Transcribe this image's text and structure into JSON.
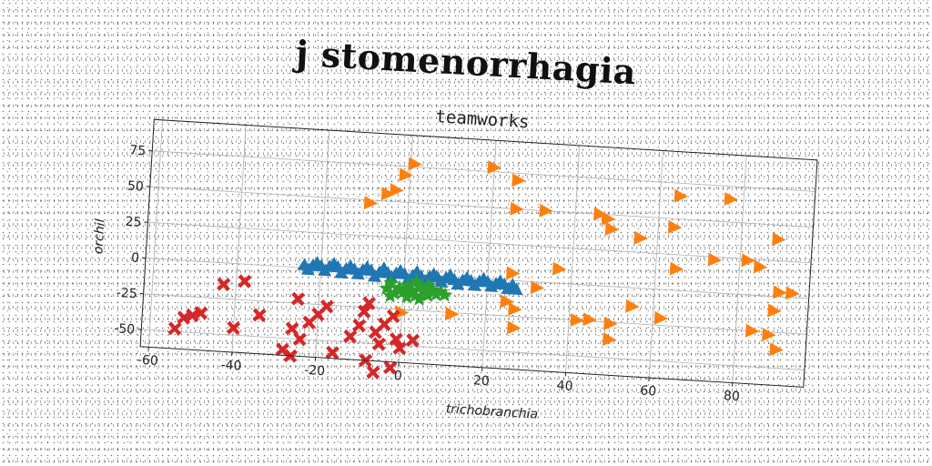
{
  "title": "j stomenorrhagia",
  "chart_data": {
    "type": "scatter",
    "title": "teamworks",
    "xlabel": "trichobranchia",
    "ylabel": "orchil",
    "xlim": [
      -62,
      97
    ],
    "ylim": [
      -62,
      97
    ],
    "xticks": [
      -60,
      -40,
      -20,
      0,
      20,
      40,
      60,
      80
    ],
    "yticks": [
      -50,
      -25,
      0,
      25,
      50,
      75
    ],
    "grid": true,
    "series": [
      {
        "marker": "triangle-up",
        "color": "#1f77b4",
        "points": [
          [
            -24,
            2
          ],
          [
            -22,
            2
          ],
          [
            -20,
            2
          ],
          [
            -18,
            2
          ],
          [
            -16,
            2
          ],
          [
            -14,
            1
          ],
          [
            -12,
            1
          ],
          [
            -10,
            1
          ],
          [
            -8,
            1
          ],
          [
            -6,
            0
          ],
          [
            -4,
            0
          ],
          [
            -2,
            0
          ],
          [
            0,
            0
          ],
          [
            2,
            -1
          ],
          [
            4,
            -1
          ],
          [
            6,
            -1
          ],
          [
            8,
            -1
          ],
          [
            10,
            -1
          ],
          [
            12,
            -2
          ],
          [
            14,
            -2
          ],
          [
            16,
            -2
          ],
          [
            18,
            -2
          ],
          [
            20,
            -2
          ],
          [
            22,
            -3
          ],
          [
            24,
            -3
          ],
          [
            26,
            -3
          ],
          [
            -23,
            -1
          ],
          [
            -19,
            -1
          ],
          [
            -15,
            -2
          ],
          [
            -11,
            -2
          ],
          [
            -7,
            -3
          ],
          [
            -3,
            -3
          ],
          [
            1,
            -4
          ],
          [
            5,
            -4
          ],
          [
            9,
            -4
          ],
          [
            13,
            -5
          ],
          [
            17,
            -5
          ],
          [
            21,
            -5
          ],
          [
            25,
            -6
          ],
          [
            27,
            -6
          ],
          [
            -21,
            4
          ],
          [
            -17,
            4
          ],
          [
            -13,
            3
          ],
          [
            -9,
            3
          ],
          [
            -5,
            3
          ],
          [
            -1,
            2
          ],
          [
            3,
            2
          ],
          [
            7,
            1
          ],
          [
            11,
            1
          ],
          [
            15,
            0
          ],
          [
            19,
            0
          ],
          [
            23,
            -1
          ]
        ]
      },
      {
        "marker": "triangle-right",
        "color": "#ff7f0e",
        "points": [
          [
            1,
            77
          ],
          [
            -1,
            69
          ],
          [
            -3,
            58
          ],
          [
            -5,
            55
          ],
          [
            -9,
            48
          ],
          [
            20,
            78
          ],
          [
            26,
            70
          ],
          [
            65,
            66
          ],
          [
            77,
            66
          ],
          [
            26,
            50
          ],
          [
            33,
            50
          ],
          [
            46,
            50
          ],
          [
            48,
            47
          ],
          [
            49,
            40
          ],
          [
            56,
            35
          ],
          [
            64,
            44
          ],
          [
            89,
            40
          ],
          [
            65,
            15
          ],
          [
            74,
            23
          ],
          [
            82,
            24
          ],
          [
            85,
            20
          ],
          [
            37,
            10
          ],
          [
            26,
            5
          ],
          [
            32,
            -4
          ],
          [
            90,
            3
          ],
          [
            93,
            3
          ],
          [
            25,
            -15
          ],
          [
            27,
            -20
          ],
          [
            42,
            -25
          ],
          [
            45,
            -24
          ],
          [
            50,
            -26
          ],
          [
            55,
            -13
          ],
          [
            62,
            -20
          ],
          [
            84,
            -25
          ],
          [
            88,
            -27
          ],
          [
            90,
            -37
          ],
          [
            50,
            -37
          ],
          [
            27,
            -33
          ],
          [
            12,
            -26
          ],
          [
            0,
            -27
          ],
          [
            89,
            -10
          ]
        ]
      },
      {
        "marker": "star",
        "color": "#2ca02c",
        "points": [
          [
            -3,
            -7
          ],
          [
            -1,
            -10
          ],
          [
            0,
            -13
          ],
          [
            1,
            -8
          ],
          [
            2,
            -11
          ],
          [
            3,
            -15
          ],
          [
            4,
            -9
          ],
          [
            5,
            -12
          ],
          [
            6,
            -14
          ],
          [
            7,
            -10
          ],
          [
            8,
            -13
          ],
          [
            -2,
            -14
          ],
          [
            -4,
            -11
          ],
          [
            9,
            -11
          ],
          [
            4,
            -17
          ],
          [
            1,
            -16
          ],
          [
            6,
            -7
          ],
          [
            3,
            -5
          ],
          [
            10,
            -13
          ],
          [
            -3,
            -16
          ]
        ]
      },
      {
        "marker": "x-filled",
        "color": "#d62728",
        "points": [
          [
            -54,
            -48
          ],
          [
            -50,
            -38
          ],
          [
            -52,
            -40
          ],
          [
            -48,
            -36
          ],
          [
            -43,
            -15
          ],
          [
            -38,
            -12
          ],
          [
            -40,
            -45
          ],
          [
            -34,
            -35
          ],
          [
            -28,
            -58
          ],
          [
            -26,
            -62
          ],
          [
            -24,
            -50
          ],
          [
            -26,
            -43
          ],
          [
            -22,
            -38
          ],
          [
            -20,
            -32
          ],
          [
            -18,
            -26
          ],
          [
            -25,
            -22
          ],
          [
            -16,
            -58
          ],
          [
            -10,
            -38
          ],
          [
            -9,
            -28
          ],
          [
            -6,
            -42
          ],
          [
            -4,
            -36
          ],
          [
            -2,
            -30
          ],
          [
            -1,
            -46
          ],
          [
            -8,
            -62
          ],
          [
            -6,
            -70
          ],
          [
            -2,
            -66
          ],
          [
            0,
            -52
          ],
          [
            3,
            -46
          ],
          [
            -5,
            -50
          ],
          [
            -12,
            -46
          ],
          [
            -8,
            -22
          ]
        ]
      }
    ]
  }
}
